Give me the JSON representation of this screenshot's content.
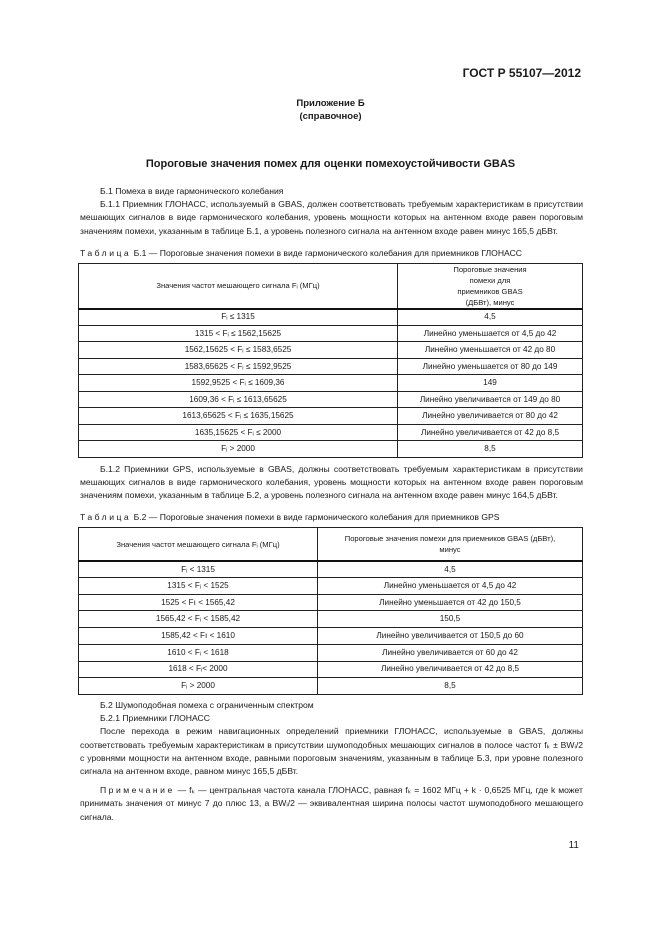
{
  "header": {
    "standard": "ГОСТ Р 55107—2012"
  },
  "annex": {
    "title": "Приложение Б",
    "kind": "(справочное)"
  },
  "title": "Пороговые значения помех для оценки помехоустойчивости GBAS",
  "sections": {
    "b1": "Б.1  Помеха в виде гармонического колебания",
    "b1_1": "Б.1.1  Приемник ГЛОНАСС, используемый в GBAS, должен соответствовать требуемым характеристикам в присутствии мешающих сигналов в виде гармонического колебания, уровень мощности которых на антенном входе равен пороговым значениям помехи, указанным в таблице Б.1, а уровень полезного сигнала на антенном входе равен минус 165,5 дБВт.",
    "b1_2": "Б.1.2  Приемники GPS, используемые в GBAS, должны соответствовать требуемым характеристикам в присутствии мешающих сигналов в виде гармонического колебания, уровень мощности которых на антенном входе равен пороговым значениям помехи, указанным в таблице Б.2, а уровень полезного сигнала на антенном входе равен минус 164,5 дБВт.",
    "b2": "Б.2  Шумоподобная помеха с ограниченным спектром",
    "b2_1": "Б.2.1  Приемники ГЛОНАСС",
    "b2_1_text": "После перехода в режим навигационных определений приемники ГЛОНАСС, используемые в GBAS, должны соответствовать требуемым характеристикам в присутствии шумоподобных мешающих сигналов в полосе частот fₖ ± BWᵢ/2 с уровнями мощности на антенном входе, равными пороговым значениям, указанным в таблице Б.3, при уровне полезного сигнала на антенном входе, равном минус 165,5 дБВт.",
    "note_label": "Примечание",
    "note_text": " — fₖ — центральная частота канала ГЛОНАСС, равная fₖ = 1602 МГц + k · 0,6525 МГц, где k может принимать значения от минус 7 до плюс 13, а BWᵢ/2 — эквивалентная ширина полосы частот шумоподобного мешающего сигнала."
  },
  "table1": {
    "label": "Таблица",
    "caption": " Б.1 — Пороговые значения помехи в виде гармонического колебания для приемников ГЛОНАСС",
    "headers": [
      "Значения частот мешающего сигнала Fᵢ (МГц)",
      "Пороговые значения помехи для приемников GBAS (ДБВт), минус"
    ],
    "rows": [
      [
        "Fᵢ ≤ 1315",
        "4,5"
      ],
      [
        "1315 < Fᵢ ≤  1562,15625",
        "Линейно уменьшается от 4,5 до 42"
      ],
      [
        "1562,15625 < Fᵢ ≤  1583,6525",
        "Линейно уменьшается от 42 до 80"
      ],
      [
        "1583,65625 < Fᵢ ≤  1592,9525",
        "Линейно уменьшается от 80 до 149"
      ],
      [
        "1592,9525 < Fᵢ ≤  1609,36",
        "149"
      ],
      [
        "1609,36 < Fᵢ ≤  1613,65625",
        "Линейно увеличивается от 149 до 80"
      ],
      [
        "1613,65625 < Fᵢ ≤  1635,15625",
        "Линейно увеличивается от 80 до 42"
      ],
      [
        "1635,15625 < Fᵢ ≤  2000",
        "Линейно увеличивается от 42 до 8,5"
      ],
      [
        "Fᵢ > 2000",
        "8,5"
      ]
    ]
  },
  "table2": {
    "label": "Таблица",
    "caption": " Б.2 — Пороговые значения помехи в виде гармонического колебания для приемников GPS",
    "headers": [
      "Значения частот мешающего сигнала Fᵢ (МГц)",
      "Пороговые значения помехи для приемников GBAS (дБВт), минус"
    ],
    "rows": [
      [
        "Fᵢ < 1315",
        "4,5"
      ],
      [
        "1315 < Fᵢ < 1525",
        "Линейно уменьшается от 4,5 до 42"
      ],
      [
        "1525 < Fı < 1565,42",
        "Линейно уменьшается от 42 до 150,5"
      ],
      [
        "1565,42 < Fᵢ < 1585,42",
        "150,5"
      ],
      [
        "1585,42 < Fı < 1610",
        "Линейно увеличивается от 150,5 до 60"
      ],
      [
        "1610 < Fᵢ < 1618",
        "Линейно увеличивается от 60 до 42"
      ],
      [
        "1618 < Fᵢ< 2000",
        "Линейно увеличивается от 42 до 8,5"
      ],
      [
        "Fᵢ > 2000",
        "8,5"
      ]
    ]
  },
  "page_number": "11"
}
